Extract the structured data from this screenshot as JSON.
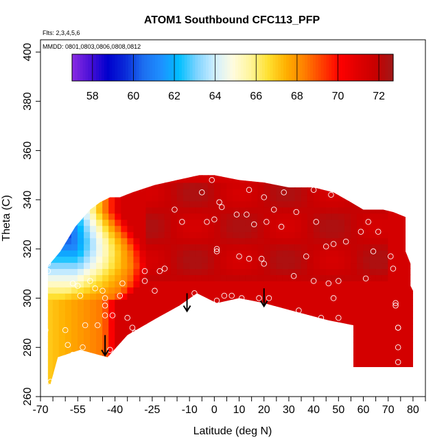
{
  "chart_data": {
    "type": "heatmap",
    "title": "ATOM1 Southbound CFC113_PFP",
    "subtitle_flights": "Flts: 2,3,4,5,6",
    "subtitle_dates": "MMDD: 0801,0803,0806,0808,0812",
    "xlabel": "Latitude (deg N)",
    "ylabel": "Theta (C)",
    "xlim": [
      -70,
      85
    ],
    "ylim": [
      260,
      405
    ],
    "x_tick_values": [
      -70,
      -55,
      -40,
      -25,
      -10,
      0,
      10,
      20,
      30,
      40,
      50,
      60,
      70,
      80
    ],
    "x_tick_labels": [
      "-70",
      "-55",
      "-40",
      "-25",
      "-10",
      "0",
      "10",
      "20",
      "30",
      "40",
      "50",
      "60",
      "70",
      "80"
    ],
    "x_minor_ticks": [
      -65,
      -60,
      -50,
      -45,
      -35,
      -30,
      -20,
      -15,
      -5,
      5,
      15,
      25,
      35,
      45,
      55,
      65,
      75,
      85
    ],
    "y_tick_values": [
      260,
      280,
      300,
      320,
      340,
      360,
      380,
      400
    ],
    "y_tick_labels": [
      "260",
      "280",
      "300",
      "320",
      "340",
      "360",
      "380",
      "400"
    ],
    "colorbar": {
      "min": 57,
      "max": 72.7,
      "tick_values": [
        58,
        60,
        62,
        64,
        66,
        68,
        70,
        72
      ],
      "tick_labels": [
        "58",
        "60",
        "62",
        "64",
        "66",
        "68",
        "70",
        "72"
      ],
      "colors": [
        "#8a2be2",
        "#4b10d8",
        "#0000cd",
        "#0a2bd9",
        "#1c6ff0",
        "#1e90ff",
        "#00bfff",
        "#7fd4ff",
        "#cfeeff",
        "#fffce0",
        "#fff59a",
        "#ffe030",
        "#ffb000",
        "#ff8000",
        "#ff4000",
        "#ff0000",
        "#e00000",
        "#c80000",
        "#a01818"
      ]
    },
    "field": {
      "upper_boundary": [
        [
          -42,
          341
        ],
        [
          -38,
          341
        ],
        [
          -33,
          343
        ],
        [
          -24,
          346
        ],
        [
          -15,
          348
        ],
        [
          -6,
          350
        ],
        [
          0,
          350
        ],
        [
          10,
          348
        ],
        [
          20,
          347
        ],
        [
          30,
          345
        ],
        [
          40,
          345
        ],
        [
          48,
          343
        ],
        [
          55,
          339
        ],
        [
          60,
          336
        ],
        [
          68,
          336
        ],
        [
          72,
          335
        ],
        [
          77,
          333
        ],
        [
          77,
          319
        ],
        [
          79,
          314
        ],
        [
          79,
          305
        ],
        [
          80,
          303
        ],
        [
          80,
          272
        ],
        [
          56,
          272
        ],
        [
          56,
          289
        ],
        [
          46,
          291
        ],
        [
          31,
          295
        ],
        [
          20,
          298
        ],
        [
          10,
          300
        ],
        [
          1,
          298
        ],
        [
          -7,
          302
        ],
        [
          -14,
          297
        ],
        [
          -23,
          292
        ],
        [
          -35,
          285
        ],
        [
          -43,
          276
        ],
        [
          -54,
          279
        ],
        [
          -63,
          276
        ],
        [
          -66,
          265
        ],
        [
          -67,
          265
        ],
        [
          -67,
          313
        ],
        [
          -62,
          319
        ],
        [
          -56,
          329
        ],
        [
          -50,
          336
        ],
        [
          -46,
          339
        ]
      ],
      "gradient_front": [
        [
          -45,
          334,
          63.5
        ],
        [
          -41,
          328,
          65
        ],
        [
          -37,
          322,
          66
        ],
        [
          -35,
          318,
          67
        ],
        [
          -34,
          312,
          68
        ],
        [
          -36,
          305,
          69
        ],
        [
          -40,
          300,
          69.5
        ],
        [
          -46,
          297,
          70
        ]
      ],
      "background_value": 71.4,
      "high_region_value": 72.2,
      "low_corner_value": 57.5
    },
    "samples": [
      [
        -67,
        314
      ],
      [
        -67,
        311
      ],
      [
        -68,
        287
      ],
      [
        -66,
        266
      ],
      [
        -60,
        287
      ],
      [
        -59,
        281
      ],
      [
        -57,
        277
      ],
      [
        -57,
        306
      ],
      [
        -55,
        305
      ],
      [
        -54,
        301
      ],
      [
        -52,
        289
      ],
      [
        -53,
        280
      ],
      [
        -50,
        307
      ],
      [
        -48,
        304
      ],
      [
        -47,
        289
      ],
      [
        -45,
        303
      ],
      [
        -44,
        300
      ],
      [
        -44,
        297
      ],
      [
        -44,
        293
      ],
      [
        -42,
        279
      ],
      [
        -41,
        293
      ],
      [
        -38,
        301
      ],
      [
        -37,
        306
      ],
      [
        -35,
        292
      ],
      [
        -33,
        288
      ],
      [
        -32,
        286
      ],
      [
        -28,
        311
      ],
      [
        -28,
        307
      ],
      [
        -24,
        303
      ],
      [
        -22,
        311
      ],
      [
        -20,
        312
      ],
      [
        -18,
        292
      ],
      [
        -16,
        336
      ],
      [
        -13,
        331
      ],
      [
        -8,
        302
      ],
      [
        -5,
        343
      ],
      [
        -3,
        331
      ],
      [
        -1,
        348
      ],
      [
        0,
        332
      ],
      [
        1,
        320
      ],
      [
        1,
        319
      ],
      [
        1,
        299
      ],
      [
        2,
        339
      ],
      [
        3,
        337
      ],
      [
        4,
        301
      ],
      [
        7,
        301
      ],
      [
        9,
        334
      ],
      [
        10,
        317
      ],
      [
        11,
        300
      ],
      [
        13,
        334
      ],
      [
        14,
        344
      ],
      [
        14,
        316
      ],
      [
        16,
        330
      ],
      [
        18,
        300
      ],
      [
        19,
        316
      ],
      [
        20,
        341
      ],
      [
        20,
        314
      ],
      [
        21,
        331
      ],
      [
        22,
        300
      ],
      [
        24,
        336
      ],
      [
        27,
        329
      ],
      [
        28,
        343
      ],
      [
        32,
        309
      ],
      [
        33,
        335
      ],
      [
        34,
        295
      ],
      [
        37,
        317
      ],
      [
        40,
        344
      ],
      [
        40,
        307
      ],
      [
        41,
        331
      ],
      [
        43,
        292
      ],
      [
        45,
        321
      ],
      [
        46,
        306
      ],
      [
        47,
        342
      ],
      [
        48,
        322
      ],
      [
        48,
        300
      ],
      [
        50,
        307
      ],
      [
        50,
        292
      ],
      [
        53,
        323
      ],
      [
        54,
        286
      ],
      [
        59,
        327
      ],
      [
        61,
        308
      ],
      [
        62,
        331
      ],
      [
        64,
        319
      ],
      [
        66,
        327
      ],
      [
        71,
        317
      ],
      [
        72,
        312
      ],
      [
        73,
        298
      ],
      [
        73,
        297
      ],
      [
        74,
        288
      ],
      [
        74,
        280
      ],
      [
        74,
        274
      ],
      [
        74,
        288
      ]
    ],
    "arrows": [
      {
        "lat": -44,
        "theta_top": 285,
        "theta_bottom": 277
      },
      {
        "lat": -11,
        "theta_top": 302,
        "theta_bottom": 295
      },
      {
        "lat": 20,
        "theta_top": 304,
        "theta_bottom": 297
      }
    ]
  }
}
